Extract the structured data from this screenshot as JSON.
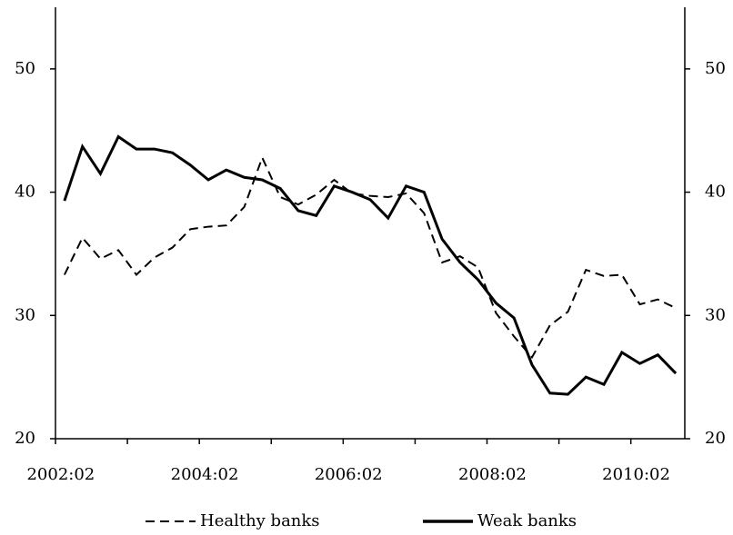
{
  "chart_data": {
    "type": "line",
    "categories": [
      "2002:02",
      null,
      null,
      null,
      null,
      null,
      null,
      null,
      "2004:02",
      null,
      null,
      null,
      null,
      null,
      null,
      null,
      "2006:02",
      null,
      null,
      null,
      null,
      null,
      null,
      null,
      "2008:02",
      null,
      null,
      null,
      null,
      null,
      null,
      null,
      "2010:02",
      null,
      null
    ],
    "series": [
      {
        "name": "Healthy banks",
        "color": "#000000",
        "dash": true,
        "values": [
          33.3,
          36.3,
          34.6,
          35.3,
          33.3,
          34.7,
          35.5,
          37.0,
          37.2,
          37.3,
          38.8,
          42.8,
          39.6,
          39.0,
          39.8,
          41.0,
          39.9,
          39.7,
          39.6,
          39.9,
          38.3,
          34.3,
          34.8,
          33.9,
          30.2,
          28.3,
          26.6,
          29.2,
          30.3,
          33.7,
          33.2,
          33.3,
          30.9,
          31.3,
          30.6
        ]
      },
      {
        "name": "Weak banks",
        "color": "#000000",
        "dash": false,
        "values": [
          39.3,
          43.7,
          41.5,
          44.5,
          43.5,
          43.5,
          43.2,
          42.2,
          41.0,
          41.8,
          41.2,
          41.0,
          40.3,
          38.5,
          38.1,
          40.5,
          40.0,
          39.4,
          37.9,
          40.5,
          40.0,
          36.2,
          34.3,
          32.9,
          31.0,
          29.8,
          26.0,
          23.7,
          23.6,
          25.0,
          24.4,
          27.0,
          26.1,
          26.8,
          25.3
        ]
      }
    ],
    "ylim": [
      20,
      55
    ],
    "yticks": [
      20,
      30,
      40,
      50
    ],
    "y2lim": [
      20,
      55
    ],
    "y2ticks": [
      20,
      30,
      40,
      50
    ],
    "grid": false,
    "legend": "bottom"
  }
}
